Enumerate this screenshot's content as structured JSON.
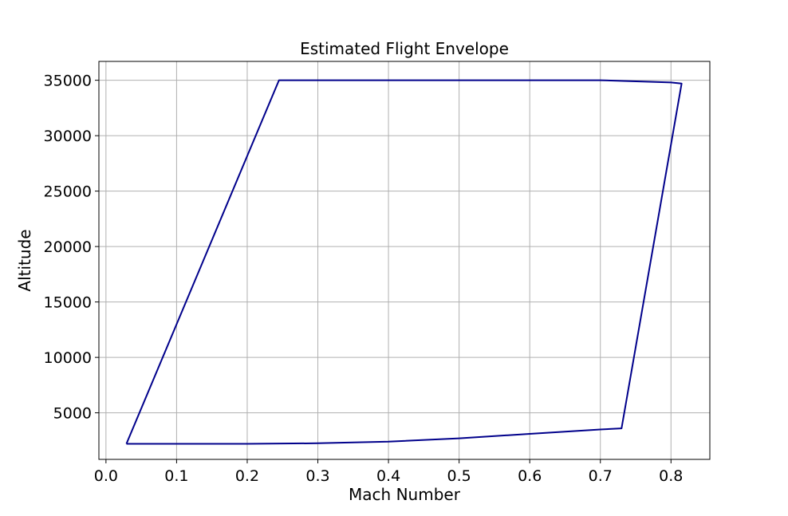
{
  "chart_data": {
    "type": "line",
    "title": "Estimated Flight Envelope",
    "xlabel": "Mach Number",
    "ylabel": "Altitude",
    "xlim": [
      -0.01,
      0.855
    ],
    "ylim": [
      800,
      36700
    ],
    "xticks": [
      0.0,
      0.1,
      0.2,
      0.3,
      0.4,
      0.5,
      0.6,
      0.7,
      0.8
    ],
    "xtick_labels": [
      "0.0",
      "0.1",
      "0.2",
      "0.3",
      "0.4",
      "0.5",
      "0.6",
      "0.7",
      "0.8"
    ],
    "yticks": [
      5000,
      10000,
      15000,
      20000,
      25000,
      30000,
      35000
    ],
    "ytick_labels": [
      "5000",
      "10000",
      "15000",
      "20000",
      "25000",
      "30000",
      "35000"
    ],
    "grid": true,
    "color": "#00008b",
    "series": [
      {
        "x": [
          0.029,
          0.1,
          0.2,
          0.3,
          0.4,
          0.5,
          0.6,
          0.7,
          0.73,
          0.815,
          0.8,
          0.7,
          0.6,
          0.5,
          0.4,
          0.3,
          0.245,
          0.029
        ],
        "y": [
          2200,
          2200,
          2200,
          2250,
          2400,
          2700,
          3100,
          3500,
          3600,
          34700,
          34800,
          35000,
          35000,
          35000,
          35000,
          35000,
          35000,
          2200
        ]
      }
    ]
  }
}
